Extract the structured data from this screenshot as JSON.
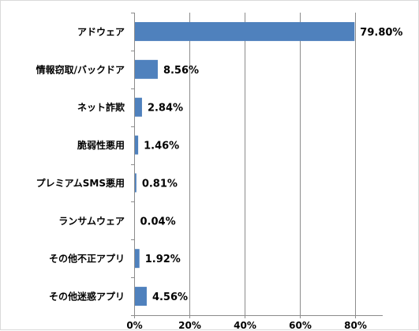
{
  "chart_data": {
    "type": "bar",
    "orientation": "horizontal",
    "title": "",
    "xlabel": "",
    "ylabel": "",
    "categories": [
      "アドウェア",
      "情報窃取/バックドア",
      "ネット詐欺",
      "脆弱性悪用",
      "プレミアムSMS悪用",
      "ランサムウェア",
      "その他不正アプリ",
      "その他迷惑アプリ"
    ],
    "values": [
      79.8,
      8.56,
      2.84,
      1.46,
      0.81,
      0.04,
      1.92,
      4.56
    ],
    "data_labels": [
      "79.80%",
      "8.56%",
      "2.84%",
      "1.46%",
      "0.81%",
      "0.04%",
      "1.92%",
      "4.56%"
    ],
    "xlim": [
      0,
      90
    ],
    "xticks": [
      0,
      20,
      40,
      60,
      80
    ],
    "xtick_labels": [
      "0%",
      "20%",
      "40%",
      "60%",
      "80%"
    ],
    "grid": true,
    "legend": "none",
    "bar_color": "#4f81bd"
  }
}
